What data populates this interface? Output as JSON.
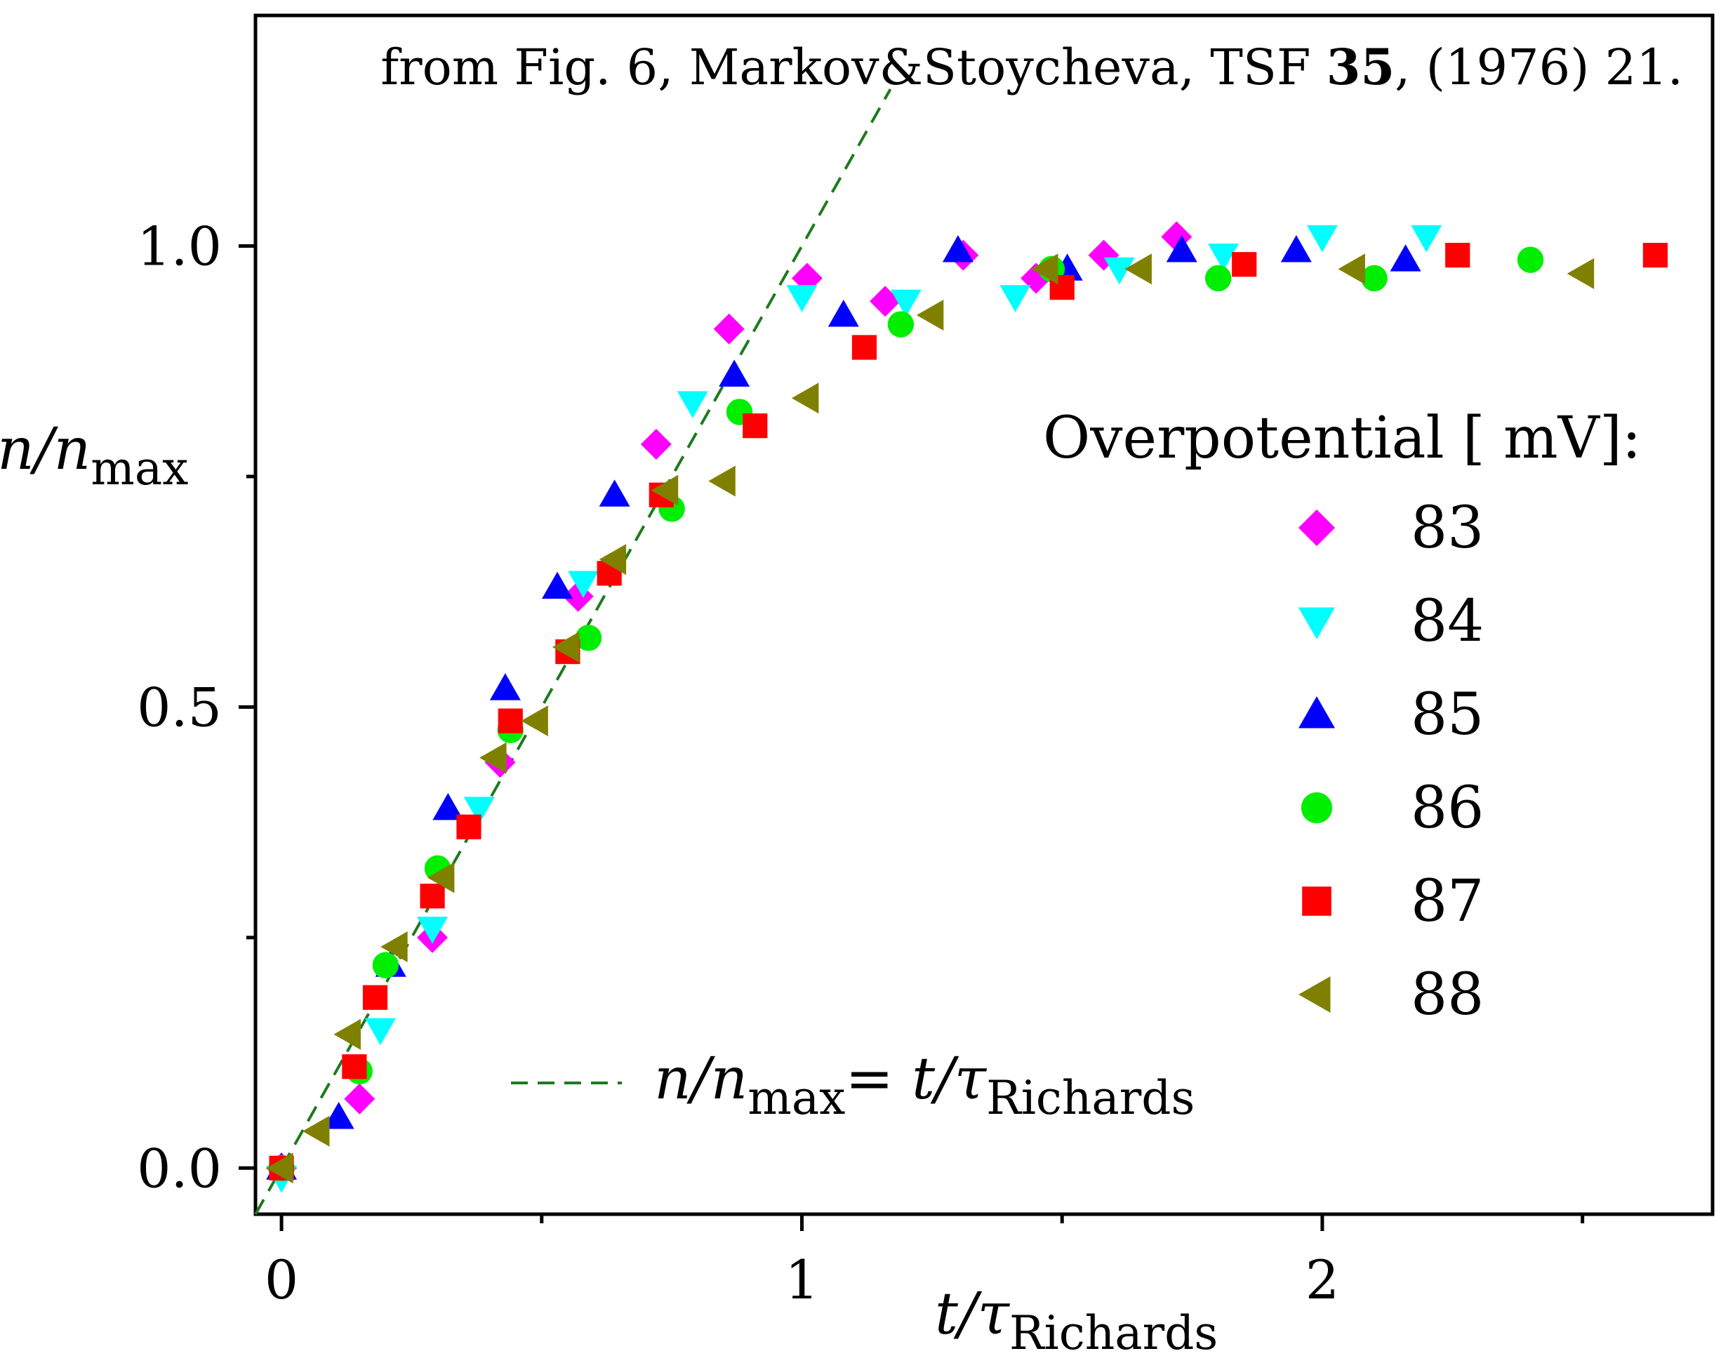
{
  "chart_data": {
    "type": "scatter",
    "source_note": {
      "before": "from Fig. 6,  Markov&Stoycheva, TSF ",
      "bold": "35",
      "after": ", (1976) 21."
    },
    "xlabel": {
      "main": "t/τ",
      "sub": "Richards"
    },
    "ylabel": {
      "main": "n/n",
      "sub": "max"
    },
    "xlim": [
      -0.05,
      2.75
    ],
    "ylim": [
      -0.05,
      1.25
    ],
    "x_ticks": [
      {
        "value": 0,
        "label": "0"
      },
      {
        "value": 1,
        "label": "1"
      },
      {
        "value": 2,
        "label": "2"
      }
    ],
    "x_minor_ticks": [
      0.5,
      1.5,
      2.5
    ],
    "y_ticks": [
      {
        "value": 0,
        "label": "0.0"
      },
      {
        "value": 0.5,
        "label": "0.5"
      },
      {
        "value": 1,
        "label": "1.0"
      }
    ],
    "y_minor_ticks": [
      0.25,
      0.75
    ],
    "grid": false,
    "legend": {
      "placement": "right",
      "title": "Overpotential [ mV]:",
      "line_entry": {
        "text_main": "n/n",
        "text_sub": "max",
        "text_mid": "= t/τ",
        "text_sub2": "Richards"
      }
    },
    "reference_line": {
      "style": "dashed",
      "color": "#1e7a1e",
      "slope": 1,
      "from": -0.05,
      "to": 1.17
    },
    "series": [
      {
        "name": "83",
        "marker": "diamond",
        "color": "#ff00ff",
        "points": [
          [
            0.0,
            0.0
          ],
          [
            0.15,
            0.075
          ],
          [
            0.29,
            0.25
          ],
          [
            0.42,
            0.44
          ],
          [
            0.57,
            0.62
          ],
          [
            0.72,
            0.785
          ],
          [
            0.86,
            0.91
          ],
          [
            1.01,
            0.965
          ],
          [
            1.16,
            0.94
          ],
          [
            1.31,
            0.99
          ],
          [
            1.45,
            0.965
          ],
          [
            1.58,
            0.99
          ],
          [
            1.72,
            1.01
          ]
        ]
      },
      {
        "name": "84",
        "marker": "triangle-down",
        "color": "#00ffff",
        "points": [
          [
            0.0,
            -0.01
          ],
          [
            0.19,
            0.15
          ],
          [
            0.29,
            0.26
          ],
          [
            0.38,
            0.39
          ],
          [
            0.58,
            0.635
          ],
          [
            0.79,
            0.83
          ],
          [
            1.0,
            0.945
          ],
          [
            1.2,
            0.94
          ],
          [
            1.41,
            0.945
          ],
          [
            1.61,
            0.975
          ],
          [
            1.81,
            0.99
          ],
          [
            2.0,
            1.01
          ],
          [
            2.2,
            1.01
          ]
        ]
      },
      {
        "name": "85",
        "marker": "triangle-up",
        "color": "#0000ff",
        "points": [
          [
            0.0,
            0.0
          ],
          [
            0.11,
            0.055
          ],
          [
            0.21,
            0.22
          ],
          [
            0.32,
            0.39
          ],
          [
            0.43,
            0.52
          ],
          [
            0.53,
            0.63
          ],
          [
            0.64,
            0.73
          ],
          [
            0.87,
            0.86
          ],
          [
            1.08,
            0.925
          ],
          [
            1.3,
            0.995
          ],
          [
            1.51,
            0.975
          ],
          [
            1.73,
            0.995
          ],
          [
            1.95,
            0.995
          ],
          [
            2.16,
            0.985
          ]
        ]
      },
      {
        "name": "86",
        "marker": "circle",
        "color": "#00ee00",
        "points": [
          [
            0.0,
            0.0
          ],
          [
            0.15,
            0.105
          ],
          [
            0.2,
            0.22
          ],
          [
            0.3,
            0.325
          ],
          [
            0.44,
            0.475
          ],
          [
            0.59,
            0.575
          ],
          [
            0.75,
            0.715
          ],
          [
            0.88,
            0.82
          ],
          [
            1.19,
            0.915
          ],
          [
            1.48,
            0.975
          ],
          [
            1.8,
            0.965
          ],
          [
            2.1,
            0.965
          ],
          [
            2.4,
            0.985
          ]
        ]
      },
      {
        "name": "87",
        "marker": "square",
        "color": "#ff0000",
        "points": [
          [
            0.0,
            0.0
          ],
          [
            0.14,
            0.11
          ],
          [
            0.18,
            0.185
          ],
          [
            0.29,
            0.295
          ],
          [
            0.36,
            0.37
          ],
          [
            0.44,
            0.485
          ],
          [
            0.55,
            0.56
          ],
          [
            0.63,
            0.645
          ],
          [
            0.73,
            0.73
          ],
          [
            0.91,
            0.805
          ],
          [
            1.12,
            0.89
          ],
          [
            1.5,
            0.955
          ],
          [
            1.85,
            0.98
          ],
          [
            2.26,
            0.99
          ],
          [
            2.64,
            0.99
          ]
        ]
      },
      {
        "name": "88",
        "marker": "triangle-left",
        "color": "#808000",
        "points": [
          [
            0.0,
            0.0
          ],
          [
            0.07,
            0.04
          ],
          [
            0.13,
            0.145
          ],
          [
            0.22,
            0.24
          ],
          [
            0.31,
            0.315
          ],
          [
            0.41,
            0.445
          ],
          [
            0.49,
            0.485
          ],
          [
            0.55,
            0.565
          ],
          [
            0.64,
            0.66
          ],
          [
            0.74,
            0.735
          ],
          [
            0.85,
            0.745
          ],
          [
            1.01,
            0.835
          ],
          [
            1.25,
            0.925
          ],
          [
            1.47,
            0.975
          ],
          [
            1.65,
            0.975
          ],
          [
            2.06,
            0.975
          ],
          [
            2.5,
            0.97
          ]
        ]
      }
    ]
  }
}
